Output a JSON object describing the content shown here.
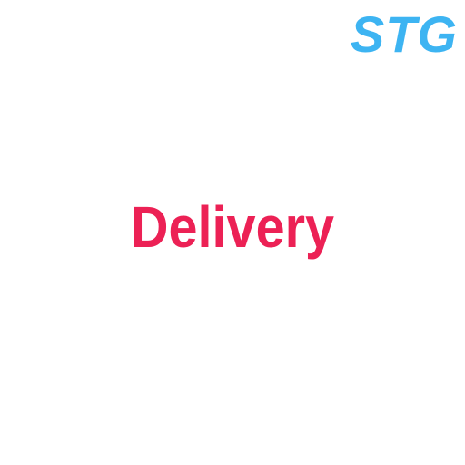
{
  "environment_badge": {
    "label": "STG",
    "color": "#3db4f2"
  },
  "splash": {
    "title": "Delivery",
    "color": "#ec2155"
  }
}
